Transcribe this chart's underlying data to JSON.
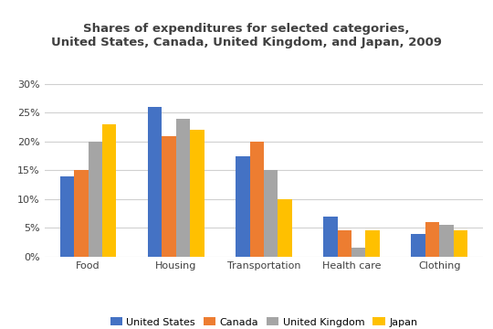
{
  "title": "Shares of expenditures for selected categories,\nUnited States, Canada, United Kingdom, and Japan, 2009",
  "categories": [
    "Food",
    "Housing",
    "Transportation",
    "Health care",
    "Clothing"
  ],
  "series": {
    "United States": [
      14,
      26,
      17.5,
      7,
      4
    ],
    "Canada": [
      15,
      21,
      20,
      4.5,
      6
    ],
    "United Kingdom": [
      20,
      24,
      15,
      1.5,
      5.5
    ],
    "Japan": [
      23,
      22,
      10,
      4.5,
      4.5
    ]
  },
  "colors": {
    "United States": "#4472C4",
    "Canada": "#ED7D31",
    "United Kingdom": "#A5A5A5",
    "Japan": "#FFC000"
  },
  "ylim": [
    0,
    32
  ],
  "yticks": [
    0,
    5,
    10,
    15,
    20,
    25,
    30
  ],
  "background_color": "#FFFFFF",
  "grid_color": "#D0D0D0",
  "title_color": "#404040",
  "title_fontsize": 9.5
}
